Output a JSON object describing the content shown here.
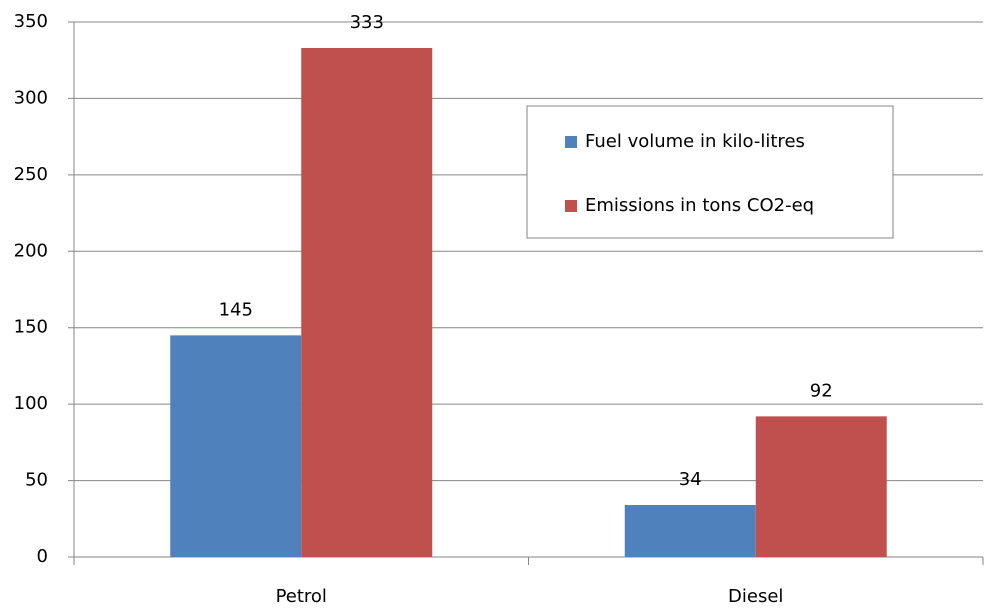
{
  "chart_data": {
    "type": "bar",
    "categories": [
      "Petrol",
      "Diesel"
    ],
    "series": [
      {
        "name": "Fuel volume in kilo-litres",
        "color": "#4f81bd",
        "values": [
          145,
          34
        ]
      },
      {
        "name": "Emissions in tons CO2-eq",
        "color": "#c0504d",
        "values": [
          333,
          92
        ]
      }
    ],
    "ylim": [
      0,
      350
    ],
    "yticks": [
      0,
      50,
      100,
      150,
      200,
      250,
      300,
      350
    ],
    "grid": true,
    "legend": "upper right",
    "data_labels": true
  }
}
